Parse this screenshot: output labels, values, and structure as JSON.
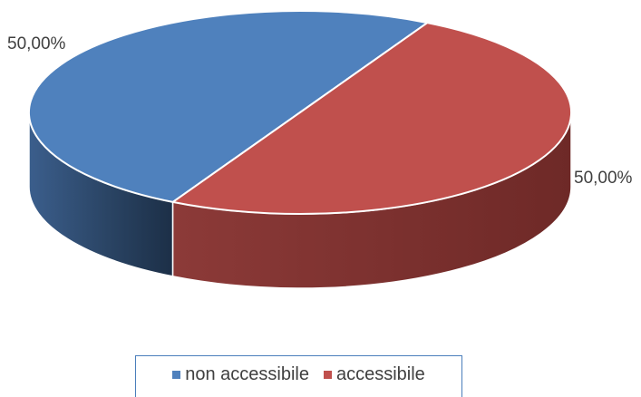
{
  "chart_data": {
    "type": "pie",
    "style": "3d",
    "slices": [
      {
        "label": "non accessibile",
        "value": 50,
        "display": "50,00%",
        "color": "#4f81bd"
      },
      {
        "label": "accessibile",
        "value": 50,
        "display": "50,00%",
        "color": "#c0504d"
      }
    ],
    "legend": {
      "position": "bottom",
      "entries": [
        "non accessibile",
        "accessibile"
      ]
    }
  }
}
